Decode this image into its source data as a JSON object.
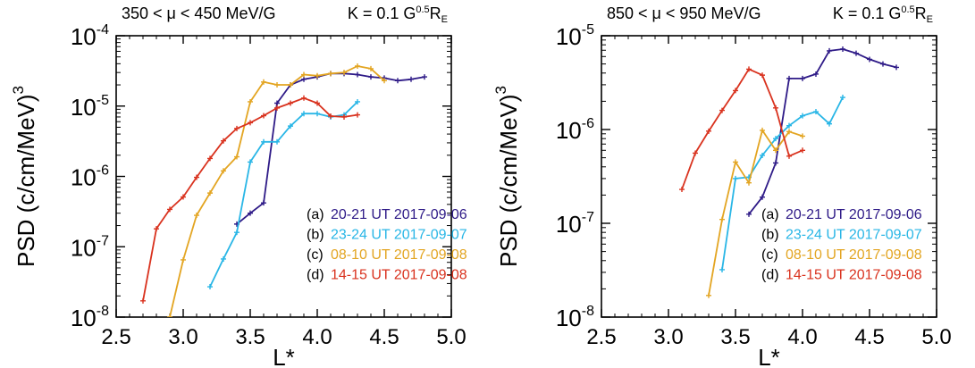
{
  "chart_data": [
    {
      "type": "line",
      "title_left": "350 < μ < 450 MeV/G",
      "title_right": "K = 0.1 G",
      "title_right_sup": "0.5",
      "title_right_suffix": "R",
      "title_right_sub": "E",
      "xlabel": "L*",
      "ylabel": "PSD (c/cm/MeV)",
      "ylabel_sup": "3",
      "xlim": [
        2.5,
        5.0
      ],
      "ylim": [
        1e-08,
        0.0001
      ],
      "yscale": "log",
      "xticks": [
        "2.5",
        "3.0",
        "3.5",
        "4.0",
        "4.5",
        "5.0"
      ],
      "yticks": [
        {
          "base": "10",
          "exp": "-8"
        },
        {
          "base": "10",
          "exp": "-7"
        },
        {
          "base": "10",
          "exp": "-6"
        },
        {
          "base": "10",
          "exp": "-5"
        },
        {
          "base": "10",
          "exp": "-4"
        }
      ],
      "legend_position": "bottom-right",
      "series": [
        {
          "name": "20-21 UT 2017-09-06",
          "tag": "(a)",
          "color": "#2e1a87",
          "x": [
            3.4,
            3.5,
            3.6,
            3.7,
            3.8,
            3.9,
            4.0,
            4.1,
            4.2,
            4.3,
            4.4,
            4.5,
            4.6,
            4.7,
            4.8
          ],
          "y": [
            2.1e-07,
            3e-07,
            4.2e-07,
            1.1e-05,
            2e-05,
            2.4e-05,
            2.6e-05,
            2.9e-05,
            2.9e-05,
            2.8e-05,
            2.6e-05,
            2.5e-05,
            2.3e-05,
            2.4e-05,
            2.6e-05
          ]
        },
        {
          "name": "23-24 UT 2017-09-07",
          "tag": "(b)",
          "color": "#29b6e6",
          "x": [
            3.2,
            3.3,
            3.4,
            3.5,
            3.6,
            3.7,
            3.8,
            3.9,
            4.0,
            4.1,
            4.2,
            4.3
          ],
          "y": [
            2.7e-08,
            6.7e-08,
            1.6e-07,
            1.6e-06,
            3.1e-06,
            3.1e-06,
            5.2e-06,
            7.8e-06,
            7.8e-06,
            7e-06,
            7.5e-06,
            1.15e-05
          ]
        },
        {
          "name": "08-10 UT 2017-09-08",
          "tag": "(c)",
          "color": "#e3a522",
          "x": [
            2.9,
            3.0,
            3.1,
            3.2,
            3.3,
            3.4,
            3.5,
            3.6,
            3.7,
            3.8,
            3.9,
            4.0,
            4.1,
            4.2,
            4.3,
            4.4,
            4.5
          ],
          "y": [
            1e-08,
            6.5e-08,
            2.8e-07,
            5.8e-07,
            1.2e-06,
            1.9e-06,
            1.15e-05,
            2.2e-05,
            2e-05,
            2e-05,
            2.8e-05,
            2.7e-05,
            2.9e-05,
            3e-05,
            3.7e-05,
            3.4e-05,
            2.3e-05
          ]
        },
        {
          "name": "14-15 UT 2017-09-08",
          "tag": "(d)",
          "color": "#d9321e",
          "x": [
            2.7,
            2.8,
            2.9,
            3.0,
            3.1,
            3.2,
            3.3,
            3.4,
            3.5,
            3.6,
            3.7,
            3.8,
            3.9,
            4.0,
            4.1,
            4.2,
            4.3
          ],
          "y": [
            1.7e-08,
            1.8e-07,
            3.4e-07,
            5.1e-07,
            9.7e-07,
            1.8e-06,
            3.2e-06,
            4.8e-06,
            5.8e-06,
            7.3e-06,
            9.4e-06,
            1.1e-05,
            1.3e-05,
            1.1e-05,
            7.2e-06,
            7e-06,
            7.5e-06
          ]
        }
      ]
    },
    {
      "type": "line",
      "title_left": "850 < μ < 950 MeV/G",
      "title_right": "K = 0.1 G",
      "title_right_sup": "0.5",
      "title_right_suffix": "R",
      "title_right_sub": "E",
      "xlabel": "L*",
      "ylabel": "PSD (c/cm/MeV)",
      "ylabel_sup": "3",
      "xlim": [
        2.5,
        5.0
      ],
      "ylim": [
        1e-08,
        1e-05
      ],
      "yscale": "log",
      "xticks": [
        "2.5",
        "3.0",
        "3.5",
        "4.0",
        "4.5",
        "5.0"
      ],
      "yticks": [
        {
          "base": "10",
          "exp": "-8"
        },
        {
          "base": "10",
          "exp": "-7"
        },
        {
          "base": "10",
          "exp": "-6"
        },
        {
          "base": "10",
          "exp": "-5"
        }
      ],
      "legend_position": "bottom-right",
      "series": [
        {
          "name": "20-21 UT 2017-09-06",
          "tag": "(a)",
          "color": "#2e1a87",
          "x": [
            3.6,
            3.7,
            3.8,
            3.9,
            4.0,
            4.1,
            4.2,
            4.3,
            4.4,
            4.5,
            4.6,
            4.7
          ],
          "y": [
            1.25e-07,
            1.9e-07,
            4.4e-07,
            3.5e-06,
            3.5e-06,
            3.9e-06,
            6.9e-06,
            7.2e-06,
            6.5e-06,
            5.6e-06,
            5e-06,
            4.6e-06
          ]
        },
        {
          "name": "23-24 UT 2017-09-07",
          "tag": "(b)",
          "color": "#29b6e6",
          "x": [
            3.4,
            3.5,
            3.6,
            3.7,
            3.8,
            3.9,
            4.0,
            4.1,
            4.2,
            4.3
          ],
          "y": [
            3.2e-08,
            3e-07,
            3.1e-07,
            5.3e-07,
            8e-07,
            1.1e-06,
            1.4e-06,
            1.55e-06,
            1.15e-06,
            2.2e-06
          ]
        },
        {
          "name": "08-10 UT 2017-09-08",
          "tag": "(c)",
          "color": "#e3a522",
          "x": [
            3.3,
            3.4,
            3.5,
            3.6,
            3.7,
            3.8,
            3.9,
            4.0
          ],
          "y": [
            1.7e-08,
            1.1e-07,
            4.5e-07,
            2.7e-07,
            9.8e-07,
            6e-07,
            9.5e-07,
            8.5e-07
          ]
        },
        {
          "name": "14-15 UT 2017-09-08",
          "tag": "(d)",
          "color": "#d9321e",
          "x": [
            3.1,
            3.2,
            3.3,
            3.4,
            3.5,
            3.6,
            3.7,
            3.8,
            3.9,
            4.0
          ],
          "y": [
            2.3e-07,
            5.6e-07,
            9.6e-07,
            1.6e-06,
            2.6e-06,
            4.4e-06,
            3.8e-06,
            1.7e-06,
            5.2e-07,
            6e-07
          ]
        }
      ]
    }
  ]
}
